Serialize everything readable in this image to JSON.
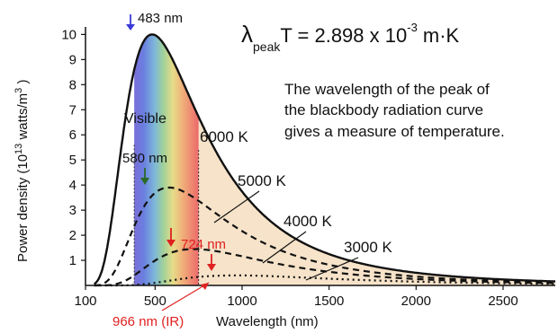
{
  "chart_data": {
    "type": "line",
    "title": "",
    "xlabel": "Wavelength (nm)",
    "ylabel_main": "Power density (10",
    "ylabel_exp": "13",
    "ylabel_rest": " watts/m",
    "ylabel_exp2": "3",
    "ylabel_end": " )",
    "xlim": [
      100,
      2800
    ],
    "ylim": [
      0,
      10.3
    ],
    "x_ticks": [
      100,
      500,
      1000,
      1500,
      2000,
      2500
    ],
    "y_ticks": [
      1,
      2,
      3,
      4,
      5,
      6,
      7,
      8,
      9,
      10
    ],
    "grid": false,
    "visible_band_nm": [
      380,
      750
    ],
    "visible_label": "Visible",
    "series": [
      {
        "name": "6000 K",
        "temperature": 6000,
        "style": "solid",
        "peak_nm": 483,
        "peak_value": 10.0
      },
      {
        "name": "5000 K",
        "temperature": 5000,
        "style": "dashed",
        "peak_nm": 580,
        "peak_value": 3.9
      },
      {
        "name": "4000 K",
        "temperature": 4000,
        "style": "dashed",
        "peak_nm": 724,
        "peak_value": 1.45
      },
      {
        "name": "3000 K",
        "temperature": 3000,
        "style": "dotted",
        "peak_nm": 966,
        "peak_value": 0.4
      }
    ],
    "peak_labels": {
      "p6000": "483 nm",
      "p5000": "580 nm",
      "p4000": "724 nm",
      "p3000": "966 nm (IR)"
    },
    "formula": {
      "lambda": "λ",
      "sub": "peak",
      "mid": "T = 2.898  x 10",
      "exp": "-3",
      "unit": " m·K"
    },
    "description": [
      "The wavelength of the peak of",
      "the blackbody radiation curve",
      "gives a measure of temperature."
    ]
  },
  "colors": {
    "arrow_6000": "#3a3ad8",
    "arrow_5000": "#2a6a2a",
    "arrow_red": "#e02020",
    "label_red": "#e02020",
    "ir_fill": "#f6e3c9"
  }
}
